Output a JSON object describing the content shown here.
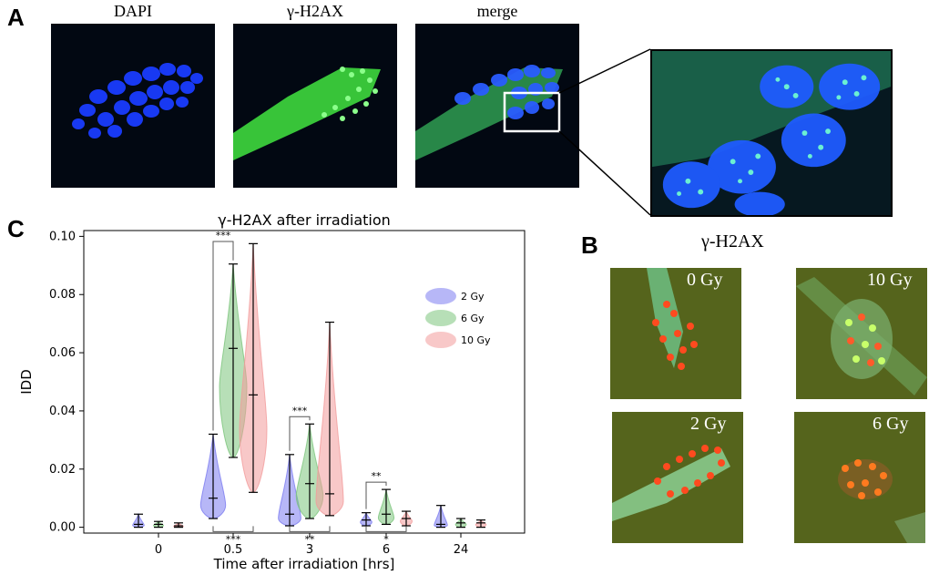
{
  "panels": {
    "A": {
      "letter": "A",
      "labels": [
        "DAPI",
        "γ-H2AX",
        "merge"
      ]
    },
    "B": {
      "letter": "B",
      "title": "γ-H2AX",
      "doses": [
        "0 Gy",
        "10 Gy",
        "2 Gy",
        "6 Gy"
      ]
    },
    "C": {
      "letter": "C"
    }
  },
  "colors": {
    "dapi": "#1a3cff",
    "h2ax": "#2ee82e",
    "red_nuclei": "#ff3a1a",
    "bg_dark": "#020812"
  },
  "chart_data": {
    "type": "violin",
    "title": "γ-H2AX after irradiation",
    "xlabel": "Time after irradiation [hrs]",
    "ylabel": "IDD",
    "categories": [
      "0",
      "0.5",
      "3",
      "6",
      "24"
    ],
    "ylim": [
      -0.002,
      0.102
    ],
    "yticks": [
      "0.00",
      "0.02",
      "0.04",
      "0.06",
      "0.08",
      "0.10"
    ],
    "legend_position": "right",
    "series": [
      {
        "name": "2 Gy",
        "color": "#7b7bf0",
        "min": [
          0.0,
          0.003,
          0.0005,
          0.0005,
          0.0
        ],
        "median": [
          0.001,
          0.01,
          0.0045,
          0.0025,
          0.001
        ],
        "max": [
          0.0045,
          0.032,
          0.025,
          0.005,
          0.0075
        ]
      },
      {
        "name": "6 Gy",
        "color": "#7cc47c",
        "min": [
          0.0,
          0.024,
          0.003,
          0.001,
          0.0
        ],
        "median": [
          0.001,
          0.0615,
          0.015,
          0.0045,
          0.0015
        ],
        "max": [
          0.002,
          0.0905,
          0.0355,
          0.013,
          0.003
        ]
      },
      {
        "name": "10 Gy",
        "color": "#f39b9b",
        "min": [
          0.0,
          0.012,
          0.004,
          0.0005,
          0.0
        ],
        "median": [
          0.0005,
          0.0455,
          0.0115,
          0.003,
          0.0015
        ],
        "max": [
          0.0015,
          0.0975,
          0.0705,
          0.0055,
          0.0025
        ]
      }
    ],
    "significance": [
      {
        "label": "***",
        "category": "0.5",
        "pair": "2-6",
        "side": "top"
      },
      {
        "label": "***",
        "category": "3",
        "pair": "2-6",
        "side": "top"
      },
      {
        "label": "**",
        "category": "6",
        "pair": "2-6",
        "side": "top"
      },
      {
        "label": "***",
        "category": "0.5",
        "pair": "2-10",
        "side": "bottom"
      },
      {
        "label": "**",
        "category": "3",
        "pair": "2-10",
        "side": "bottom"
      },
      {
        "label": "*",
        "category": "6",
        "pair": "2-10",
        "side": "bottom"
      }
    ]
  }
}
